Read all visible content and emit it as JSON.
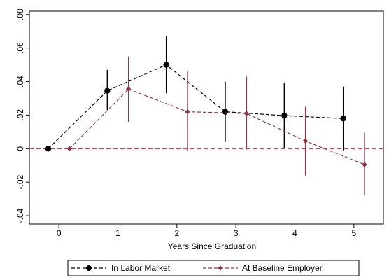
{
  "chart_data": {
    "type": "line",
    "xlabel": "Years Since Graduation",
    "ylabel": "",
    "xlim": [
      -0.5,
      5.5
    ],
    "ylim": [
      -0.045,
      0.082
    ],
    "x_ticks": [
      0,
      1,
      2,
      3,
      4,
      5
    ],
    "x_tick_labels": [
      "0",
      "1",
      "2",
      "3",
      "4",
      "5"
    ],
    "y_ticks": [
      -0.04,
      -0.02,
      0,
      0.02,
      0.04,
      0.06,
      0.08
    ],
    "y_tick_labels": [
      "-.04",
      "-.02",
      "0",
      ".02",
      ".04",
      ".06",
      ".08"
    ],
    "reference_line": {
      "y": 0,
      "color": "#b03050",
      "style": "dashed"
    },
    "series": [
      {
        "name": "In Labor Market",
        "color": "#000000",
        "marker": "circle",
        "x": [
          -0.18,
          0.82,
          1.82,
          2.82,
          3.82,
          4.82
        ],
        "y": [
          0.0,
          0.0345,
          0.05,
          0.022,
          0.0197,
          0.018
        ],
        "ci_low": [
          null,
          0.023,
          0.033,
          0.004,
          0.0005,
          -0.001
        ],
        "ci_high": [
          null,
          0.047,
          0.067,
          0.04,
          0.039,
          0.037
        ]
      },
      {
        "name": "At Baseline Employer",
        "color": "#8b3a4a",
        "marker": "diamond",
        "x": [
          0.18,
          1.18,
          2.18,
          3.18,
          4.18,
          5.18
        ],
        "y": [
          0.0,
          0.0355,
          0.022,
          0.021,
          0.0045,
          -0.0095
        ],
        "ci_low": [
          null,
          0.016,
          -0.0015,
          -0.0005,
          -0.016,
          -0.028
        ],
        "ci_high": [
          null,
          0.055,
          0.046,
          0.043,
          0.025,
          0.0095
        ]
      }
    ],
    "legend": {
      "position": "bottom"
    }
  }
}
